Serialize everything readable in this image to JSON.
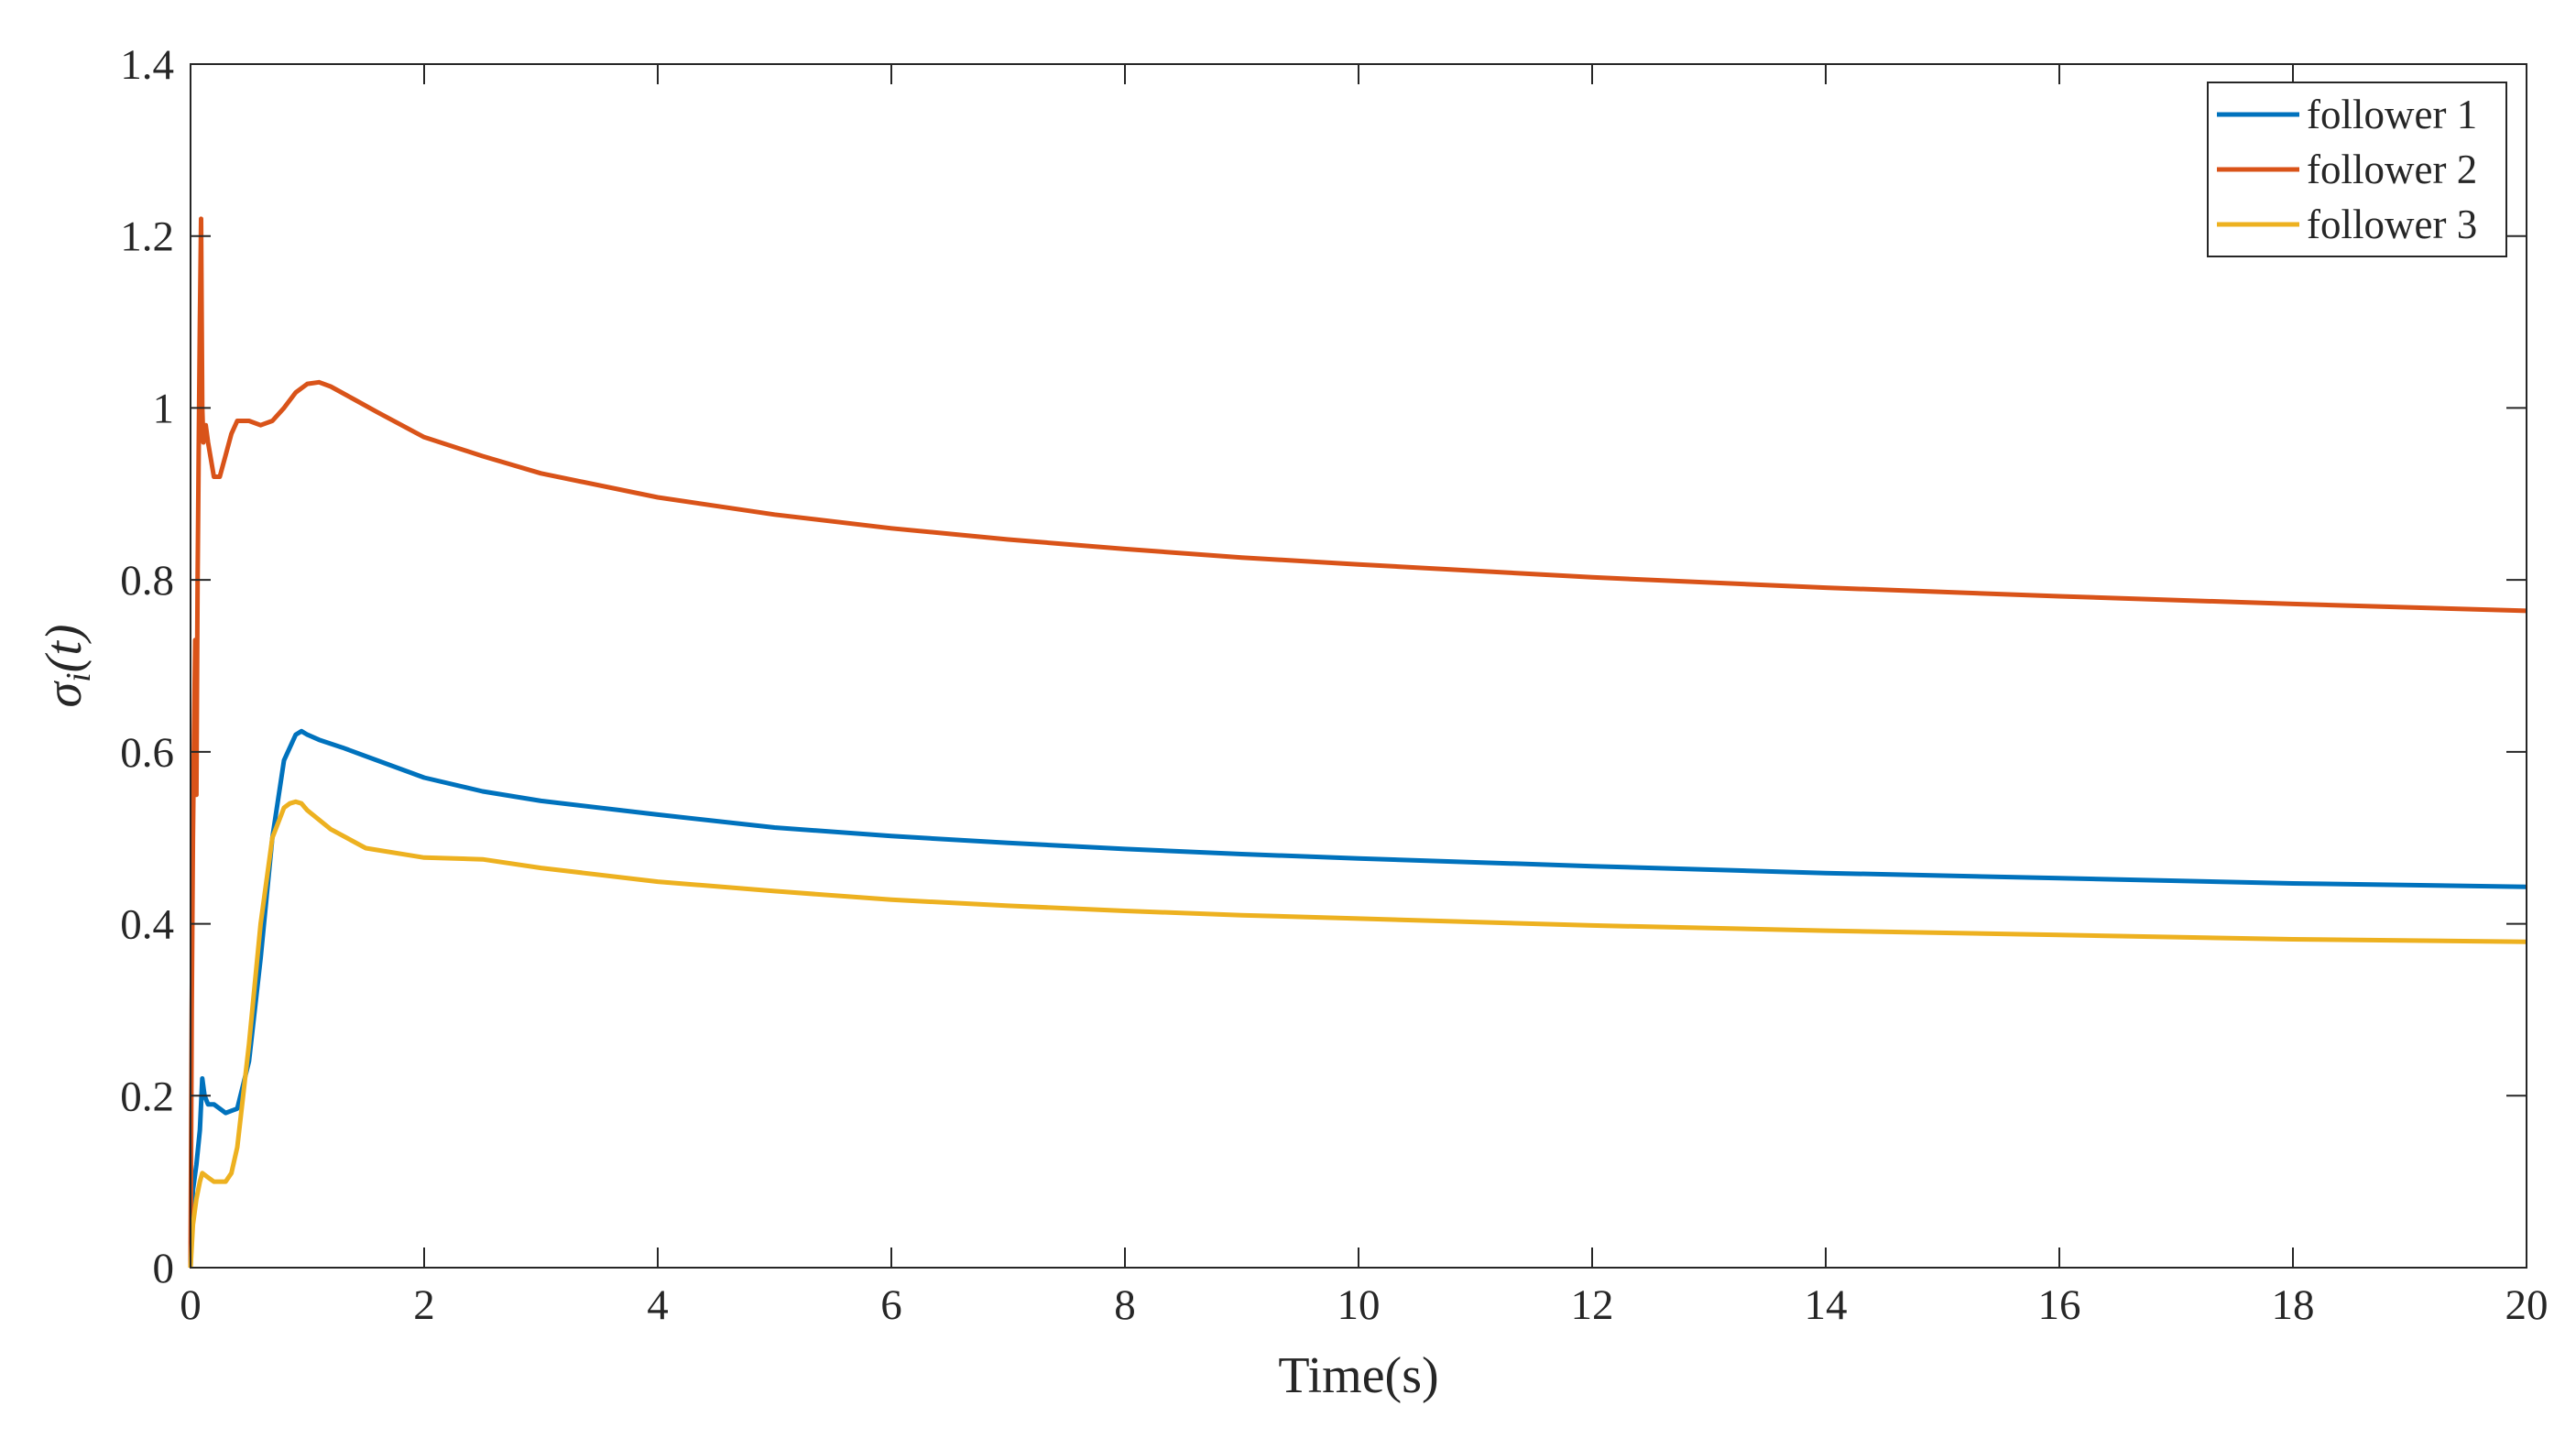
{
  "chart_data": {
    "type": "line",
    "xlabel": "Time(s)",
    "ylabel": "σi(t)",
    "ylabel_main": "σ",
    "ylabel_sub": "i",
    "ylabel_tail": "(t)",
    "xlim": [
      0,
      20
    ],
    "ylim": [
      0,
      1.4
    ],
    "xticks": [
      0,
      2,
      4,
      6,
      8,
      10,
      12,
      14,
      16,
      18,
      20
    ],
    "xtick_labels": [
      "0",
      "2",
      "4",
      "6",
      "8",
      "10",
      "12",
      "14",
      "16",
      "18",
      "20"
    ],
    "yticks": [
      0,
      0.2,
      0.4,
      0.6,
      0.8,
      1.0,
      1.2,
      1.4
    ],
    "ytick_labels": [
      "0",
      "0.2",
      "0.4",
      "0.6",
      "0.8",
      "1",
      "1.2",
      "1.4"
    ],
    "grid": false,
    "box": true,
    "legend_position": "top-right",
    "series": [
      {
        "name": "follower 1",
        "color": "#0072BD",
        "x": [
          0,
          0.02,
          0.05,
          0.08,
          0.1,
          0.12,
          0.15,
          0.2,
          0.3,
          0.4,
          0.5,
          0.6,
          0.7,
          0.8,
          0.9,
          0.95,
          1.0,
          1.1,
          1.3,
          1.5,
          2.0,
          2.5,
          3.0,
          4.0,
          5.0,
          6.0,
          7.0,
          8.0,
          9.0,
          10.0,
          12.0,
          14.0,
          16.0,
          18.0,
          20.0
        ],
        "y": [
          0.0,
          0.09,
          0.12,
          0.16,
          0.22,
          0.2,
          0.19,
          0.19,
          0.18,
          0.185,
          0.24,
          0.36,
          0.5,
          0.59,
          0.62,
          0.624,
          0.62,
          0.614,
          0.605,
          0.595,
          0.57,
          0.554,
          0.543,
          0.527,
          0.512,
          0.502,
          0.494,
          0.487,
          0.481,
          0.476,
          0.467,
          0.459,
          0.453,
          0.447,
          0.443
        ]
      },
      {
        "name": "follower 2",
        "color": "#D95319",
        "x": [
          0,
          0.01,
          0.02,
          0.03,
          0.04,
          0.05,
          0.06,
          0.07,
          0.08,
          0.09,
          0.1,
          0.11,
          0.13,
          0.15,
          0.2,
          0.25,
          0.3,
          0.35,
          0.4,
          0.5,
          0.6,
          0.7,
          0.8,
          0.9,
          1.0,
          1.1,
          1.2,
          1.4,
          1.6,
          2.0,
          2.5,
          3.0,
          4.0,
          5.0,
          6.0,
          7.0,
          8.0,
          9.0,
          10.0,
          12.0,
          14.0,
          16.0,
          18.0,
          20.0
        ],
        "y": [
          0.0,
          0.3,
          0.5,
          0.62,
          0.73,
          0.55,
          0.8,
          0.95,
          1.1,
          1.22,
          1.0,
          0.96,
          0.98,
          0.96,
          0.92,
          0.92,
          0.945,
          0.97,
          0.985,
          0.985,
          0.98,
          0.985,
          1.0,
          1.018,
          1.028,
          1.03,
          1.025,
          1.01,
          0.995,
          0.966,
          0.944,
          0.924,
          0.896,
          0.876,
          0.86,
          0.847,
          0.836,
          0.826,
          0.818,
          0.803,
          0.791,
          0.781,
          0.772,
          0.764
        ]
      },
      {
        "name": "follower 3",
        "color": "#EDB120",
        "x": [
          0,
          0.02,
          0.05,
          0.08,
          0.1,
          0.15,
          0.2,
          0.3,
          0.35,
          0.4,
          0.5,
          0.6,
          0.7,
          0.8,
          0.85,
          0.9,
          0.95,
          1.0,
          1.2,
          1.5,
          2.0,
          2.5,
          3.0,
          4.0,
          5.0,
          6.0,
          7.0,
          8.0,
          9.0,
          10.0,
          12.0,
          14.0,
          16.0,
          18.0,
          20.0
        ],
        "y": [
          0.0,
          0.05,
          0.08,
          0.1,
          0.11,
          0.105,
          0.1,
          0.1,
          0.11,
          0.14,
          0.26,
          0.4,
          0.5,
          0.535,
          0.54,
          0.542,
          0.54,
          0.532,
          0.51,
          0.488,
          0.477,
          0.475,
          0.465,
          0.449,
          0.438,
          0.428,
          0.421,
          0.415,
          0.41,
          0.406,
          0.398,
          0.392,
          0.387,
          0.382,
          0.379
        ]
      }
    ]
  }
}
